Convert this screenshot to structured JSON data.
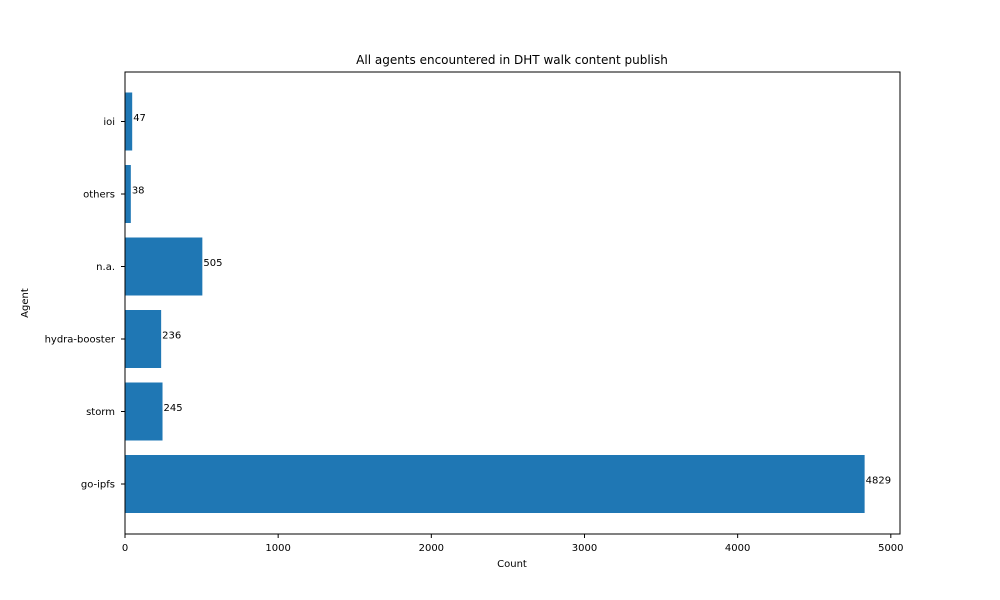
{
  "chart_data": {
    "type": "bar",
    "orientation": "horizontal",
    "title": "All agents encountered in DHT walk content publish",
    "xlabel": "Count",
    "ylabel": "Agent",
    "categories": [
      "go-ipfs",
      "storm",
      "hydra-booster",
      "n.a.",
      "others",
      "ioi"
    ],
    "values": [
      4829,
      245,
      236,
      505,
      38,
      47
    ],
    "xlim": [
      0,
      5060
    ],
    "xticks": [
      0,
      1000,
      2000,
      3000,
      4000,
      5000
    ],
    "bar_color": "#1f77b4",
    "grid": false,
    "legend": "none"
  }
}
